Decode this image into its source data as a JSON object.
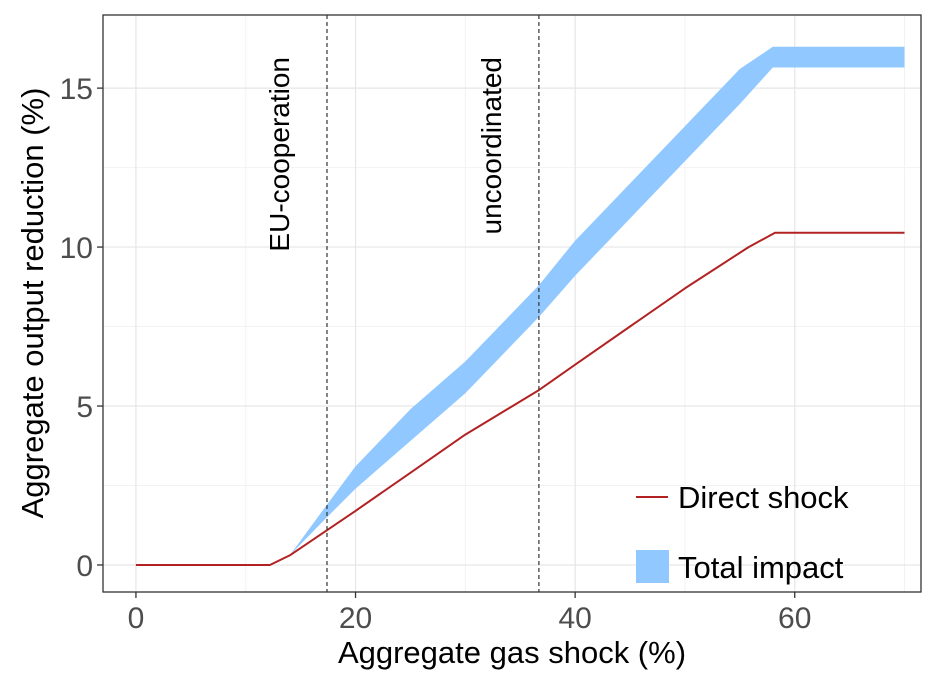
{
  "chart_data": {
    "type": "line",
    "xlabel": "Aggregate gas shock (%)",
    "ylabel": "Aggregate output reduction (%)",
    "xlim": [
      -3,
      71.5
    ],
    "ylim": [
      -0.85,
      17.3
    ],
    "x_ticks": [
      0,
      20,
      40,
      60
    ],
    "y_ticks": [
      0,
      5,
      10,
      15
    ],
    "grid": true,
    "legend_position": "bottom-right",
    "series": [
      {
        "name": "Direct shock",
        "kind": "line",
        "color": "#B22222",
        "x": [
          0,
          12.2,
          14,
          20,
          25,
          30,
          36.7,
          40,
          45,
          50,
          55.8,
          58.2,
          70
        ],
        "y": [
          0,
          0,
          0.3,
          1.7,
          2.9,
          4.1,
          5.5,
          6.3,
          7.5,
          8.7,
          10.0,
          10.45,
          10.45
        ]
      },
      {
        "name": "Total impact",
        "kind": "band",
        "color": "#90C8FF",
        "x": [
          14,
          17.4,
          20,
          25,
          30,
          36.7,
          40,
          45,
          50,
          55,
          58,
          70
        ],
        "y_low": [
          0.3,
          1.5,
          2.4,
          3.9,
          5.4,
          7.8,
          9.1,
          10.9,
          12.7,
          14.5,
          15.65,
          15.65
        ],
        "y_high": [
          0.3,
          1.9,
          3.1,
          4.9,
          6.4,
          8.8,
          10.2,
          12.0,
          13.8,
          15.6,
          16.3,
          16.3
        ]
      }
    ],
    "vlines": [
      {
        "x": 17.4,
        "label": "EU-cooperation"
      },
      {
        "x": 36.7,
        "label": "uncoordinated"
      }
    ]
  }
}
